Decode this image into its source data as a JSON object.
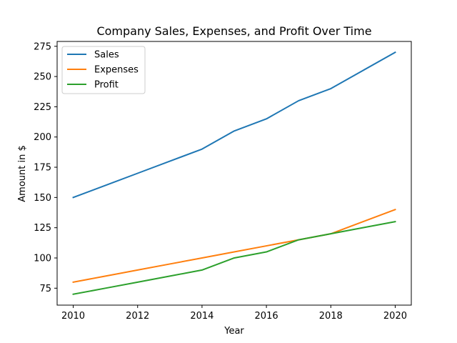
{
  "chart_data": {
    "type": "line",
    "title": "Company Sales, Expenses, and Profit Over Time",
    "xlabel": "Year",
    "ylabel": "Amount in $",
    "x": [
      2010,
      2011,
      2012,
      2013,
      2014,
      2015,
      2016,
      2017,
      2018,
      2019,
      2020
    ],
    "series": [
      {
        "name": "Sales",
        "color": "#1f77b4",
        "values": [
          150,
          160,
          170,
          180,
          190,
          205,
          215,
          230,
          240,
          255,
          270
        ]
      },
      {
        "name": "Expenses",
        "color": "#ff7f0e",
        "values": [
          80,
          85,
          90,
          95,
          100,
          105,
          110,
          115,
          120,
          130,
          140
        ]
      },
      {
        "name": "Profit",
        "color": "#2ca02c",
        "values": [
          70,
          75,
          80,
          85,
          90,
          100,
          105,
          115,
          120,
          125,
          130
        ]
      }
    ],
    "xlim": [
      2009.5,
      2020.5
    ],
    "ylim": [
      61,
      279
    ],
    "xticks": [
      2010,
      2012,
      2014,
      2016,
      2018,
      2020
    ],
    "yticks": [
      75,
      100,
      125,
      150,
      175,
      200,
      225,
      250,
      275
    ],
    "grid": false,
    "legend_position": "top-left"
  }
}
